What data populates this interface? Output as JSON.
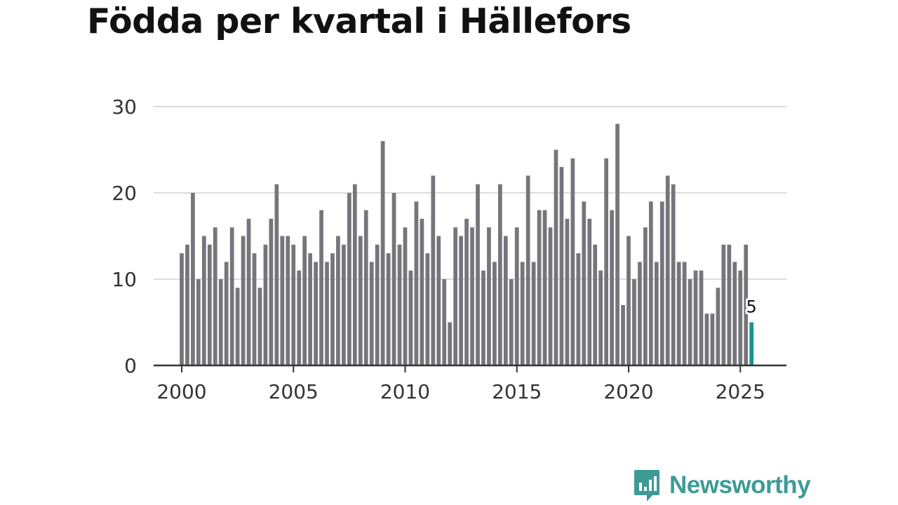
{
  "title": "Födda per kvartal i Hällefors",
  "brand": {
    "name": "Newsworthy",
    "color": "#3d9b96",
    "icon": "newsworthy-logo-icon"
  },
  "colors": {
    "bar": "#76757b",
    "highlight": "#159490",
    "grid": "#dddddd",
    "axis": "#333333",
    "tick_text": "#333333"
  },
  "chart_data": {
    "type": "bar",
    "title": "Födda per kvartal i Hällefors",
    "xlabel": "",
    "ylabel": "",
    "ylim": [
      0,
      30
    ],
    "yticks": [
      "0",
      "10",
      "20",
      "30"
    ],
    "yticks_values": [
      0,
      10,
      20,
      30
    ],
    "xticks": [
      "2000",
      "2005",
      "2010",
      "2015",
      "2020",
      "2025"
    ],
    "xticks_values": [
      2000,
      2005,
      2010,
      2015,
      2020,
      2025
    ],
    "x_start": 2000,
    "periods_per_year": 4,
    "grid": true,
    "values": [
      13,
      14,
      20,
      10,
      15,
      14,
      16,
      10,
      12,
      16,
      9,
      15,
      17,
      13,
      9,
      14,
      17,
      21,
      15,
      15,
      14,
      11,
      15,
      13,
      12,
      18,
      12,
      13,
      15,
      14,
      20,
      21,
      15,
      18,
      12,
      14,
      26,
      13,
      20,
      14,
      16,
      11,
      19,
      17,
      13,
      22,
      15,
      10,
      5,
      16,
      15,
      17,
      16,
      21,
      11,
      16,
      12,
      21,
      15,
      10,
      16,
      12,
      22,
      12,
      18,
      18,
      16,
      25,
      23,
      17,
      24,
      13,
      19,
      17,
      14,
      11,
      24,
      18,
      28,
      7,
      15,
      10,
      12,
      16,
      19,
      12,
      19,
      22,
      21,
      12,
      12,
      10,
      11,
      11,
      6,
      6,
      9,
      14,
      14,
      12,
      11,
      14,
      5
    ],
    "highlight_label": "5"
  }
}
